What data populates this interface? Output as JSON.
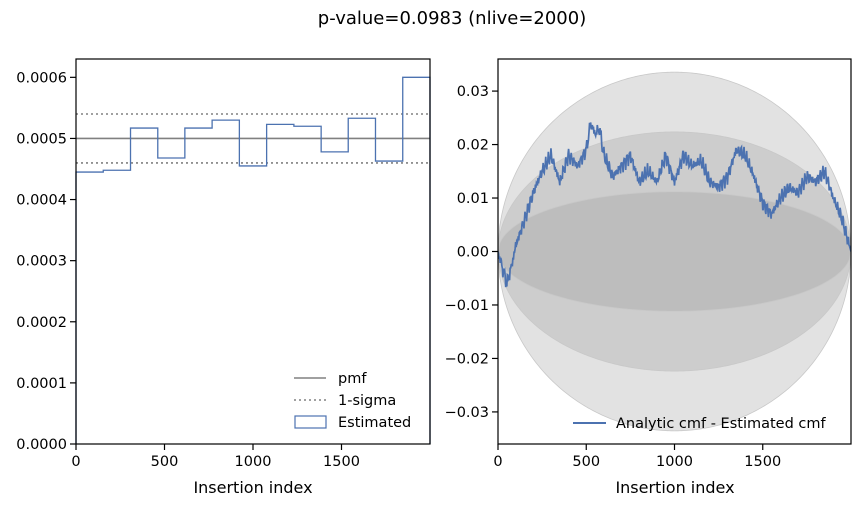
{
  "figure": {
    "suptitle": "p-value=0.0983 (nlive=2000)"
  },
  "colors": {
    "pmf": "#808080",
    "sigma": "#808080",
    "estimated": "#4c72b0",
    "band1": "#bdbdbd",
    "band2": "#cdcdcd",
    "band3": "#e2e2e2"
  },
  "chart_data": [
    {
      "type": "line",
      "title": "",
      "xlabel": "Insertion index",
      "ylabel": "",
      "xlim": [
        0,
        2000
      ],
      "ylim": [
        0,
        0.00063
      ],
      "xticks": [
        0,
        500,
        1000,
        1500
      ],
      "xtick_labels": [
        "0",
        "500",
        "1000",
        "1500"
      ],
      "yticks": [
        0,
        0.0001,
        0.0002,
        0.0003,
        0.0004,
        0.0005,
        0.0006
      ],
      "ytick_labels": [
        "0.0000",
        "0.0001",
        "0.0002",
        "0.0003",
        "0.0004",
        "0.0005",
        "0.0006"
      ],
      "legend": {
        "placement": "lower-right",
        "entries": [
          "pmf",
          "1-sigma",
          "Estimated"
        ]
      },
      "pmf": 0.0005,
      "sigma_lower": 0.00046,
      "sigma_upper": 0.00054,
      "histogram": {
        "bin_edges": [
          0,
          154,
          308,
          462,
          615,
          769,
          923,
          1077,
          1231,
          1385,
          1538,
          1692,
          1846,
          2000
        ],
        "values": [
          0.000445,
          0.000448,
          0.000517,
          0.000468,
          0.000517,
          0.00053,
          0.000455,
          0.000523,
          0.00052,
          0.000478,
          0.000533,
          0.000463,
          0.0006
        ]
      }
    },
    {
      "type": "line",
      "title": "",
      "xlabel": "Insertion index",
      "ylabel": "",
      "xlim": [
        0,
        2000
      ],
      "ylim": [
        -0.036,
        0.036
      ],
      "xticks": [
        0,
        500,
        1000,
        1500
      ],
      "xtick_labels": [
        "0",
        "500",
        "1000",
        "1500"
      ],
      "yticks": [
        -0.03,
        -0.02,
        -0.01,
        0.0,
        0.01,
        0.02,
        0.03
      ],
      "ytick_labels": [
        "−0.03",
        "−0.02",
        "−0.01",
        "0.00",
        "0.01",
        "0.02",
        "0.03"
      ],
      "legend": {
        "placement": "lower-right",
        "entries": [
          "Analytic cmf - Estimated cmf"
        ]
      },
      "bands_sigma_multiples": [
        1,
        2,
        3
      ],
      "sigma_amplitude": 0.01118,
      "series": [
        {
          "name": "Analytic cmf - Estimated cmf",
          "x": [
            0,
            25,
            50,
            75,
            100,
            150,
            200,
            250,
            300,
            350,
            400,
            450,
            500,
            525,
            550,
            575,
            600,
            650,
            700,
            750,
            800,
            850,
            900,
            950,
            1000,
            1050,
            1100,
            1150,
            1200,
            1250,
            1300,
            1350,
            1400,
            1450,
            1500,
            1550,
            1600,
            1650,
            1700,
            1750,
            1800,
            1850,
            1900,
            1950,
            2000
          ],
          "y": [
            0.0,
            -0.003,
            -0.006,
            -0.003,
            0.001,
            0.006,
            0.011,
            0.015,
            0.018,
            0.013,
            0.018,
            0.016,
            0.019,
            0.024,
            0.022,
            0.023,
            0.018,
            0.014,
            0.016,
            0.018,
            0.013,
            0.015,
            0.013,
            0.018,
            0.013,
            0.018,
            0.016,
            0.017,
            0.013,
            0.012,
            0.014,
            0.019,
            0.018,
            0.014,
            0.009,
            0.007,
            0.01,
            0.012,
            0.011,
            0.014,
            0.013,
            0.015,
            0.01,
            0.006,
            0.0
          ]
        }
      ]
    }
  ]
}
